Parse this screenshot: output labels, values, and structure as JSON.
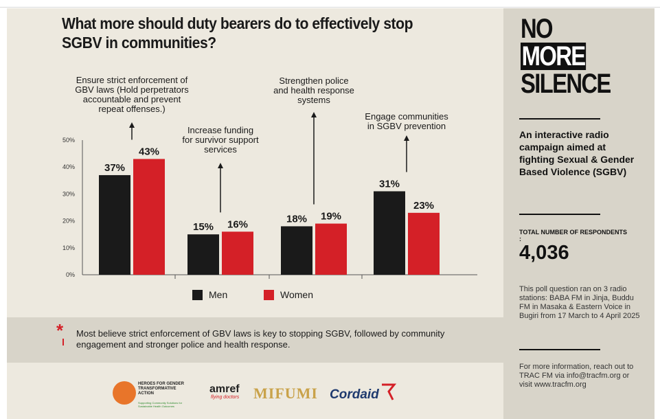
{
  "title_line1": "What more should duty bearers do to effectively stop",
  "title_line2": "SGBV in communities?",
  "chart_data": {
    "type": "bar",
    "title": "What more should duty bearers do to effectively stop SGBV in communities?",
    "categories": [
      [
        "Ensure strict enforcement of",
        "GBV laws (Hold perpetrators",
        "accountable and prevent",
        "repeat offenses.)"
      ],
      [
        "Increase funding",
        "for survivor support",
        "services"
      ],
      [
        "Strengthen police",
        "and health response",
        "systems"
      ],
      [
        "Engage communities",
        "in SGBV prevention"
      ]
    ],
    "series": [
      {
        "name": "Men",
        "color": "#1a1a1a",
        "values": [
          37,
          15,
          18,
          31
        ],
        "labels": [
          "37%",
          "15%",
          "18%",
          "31%"
        ]
      },
      {
        "name": "Women",
        "color": "#d42027",
        "values": [
          43,
          16,
          19,
          23
        ],
        "labels": [
          "43%",
          "16%",
          "19%",
          "23%"
        ]
      }
    ],
    "yticks": [
      "0%",
      "10%",
      "20%",
      "30%",
      "40%",
      "50%"
    ],
    "ylim": [
      0,
      50
    ],
    "legend_position": "bottom-center"
  },
  "note": "Most believe strict enforcement of GBV laws is key to stopping SGBV, followed by community engagement and stronger police and health response.",
  "logos": {
    "heroes_line1": "HEROES FOR GENDER",
    "heroes_line2": "TRANSFORMATIVE",
    "heroes_line3": "ACTION",
    "heroes_sub": "Supporting Community Solutions for Sustainable Health Outcomes",
    "amref": "amref",
    "amref_sub": "flying doctors",
    "mifumi": "MIFUMI",
    "cordaid": "Cordaid"
  },
  "sidebar": {
    "brand_line1": "NO",
    "brand_line2": "MORE",
    "brand_line3": "SILENCE",
    "tagline": "An interactive radio campaign aimed at fighting Sexual & Gender Based Violence (SGBV)",
    "respondents_label": "TOTAL NUMBER OF RESPONDENTS :",
    "respondents_value": "4,036",
    "poll_text": "This poll question ran on 3 radio stations: BABA FM in Jinja, Buddu FM in Masaka & Eastern Voice in Bugiri from 17 March to 4 April 2025",
    "info_text": "For more information, reach out to TRAC FM via info@tracfm.org or visit www.tracfm.org"
  }
}
